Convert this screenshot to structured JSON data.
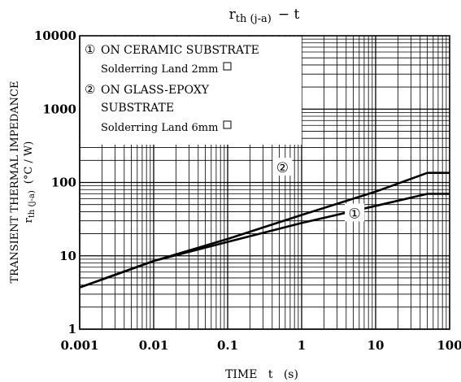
{
  "chart_data": {
    "type": "line",
    "title": {
      "main": "r",
      "sub": "th (j-a)",
      "tail": "− t"
    },
    "xlabel": "TIME   t   (s)",
    "ylabel": {
      "line1": "TRANSIENT THERMAL IMPEDANCE",
      "line2_main": "r",
      "line2_sub": "th (j-a)",
      "line2_unit": "(°C / W)"
    },
    "x_scale": "log",
    "y_scale": "log",
    "xlim": [
      0.001,
      100
    ],
    "ylim": [
      1,
      10000
    ],
    "grid": true,
    "x_ticks": [
      {
        "value": 0.001,
        "label": "0.001"
      },
      {
        "value": 0.01,
        "label": "0.01"
      },
      {
        "value": 0.1,
        "label": "0.1"
      },
      {
        "value": 1,
        "label": "1"
      },
      {
        "value": 10,
        "label": "10"
      },
      {
        "value": 100,
        "label": "100"
      }
    ],
    "y_ticks": [
      {
        "value": 1,
        "label": "1"
      },
      {
        "value": 10,
        "label": "10"
      },
      {
        "value": 100,
        "label": "100"
      },
      {
        "value": 1000,
        "label": "1000"
      },
      {
        "value": 10000,
        "label": "10000"
      }
    ],
    "legend": {
      "placement": "top-left",
      "entries": [
        {
          "marker": "①",
          "line1": "ON CERAMIC SUBSTRATE",
          "line2": "Solderring Land 2mm"
        },
        {
          "marker": "②",
          "line1": "ON GLASS-EPOXY",
          "line1b": "SUBSTRATE",
          "line2": "Solderring Land 6mm"
        }
      ]
    },
    "series": [
      {
        "name": "①",
        "x": [
          0.001,
          0.01,
          0.1,
          1,
          10,
          50,
          100
        ],
        "y": [
          3.7,
          8.5,
          15.5,
          28,
          48,
          70,
          70
        ]
      },
      {
        "name": "②",
        "x": [
          0.001,
          0.01,
          0.1,
          1,
          10,
          50,
          100
        ],
        "y": [
          3.7,
          8.5,
          17,
          36,
          75,
          135,
          135
        ]
      }
    ],
    "curve_labels": [
      {
        "text": "②",
        "x": 0.55,
        "y": 160
      },
      {
        "text": "①",
        "x": 5.2,
        "y": 38
      }
    ]
  }
}
